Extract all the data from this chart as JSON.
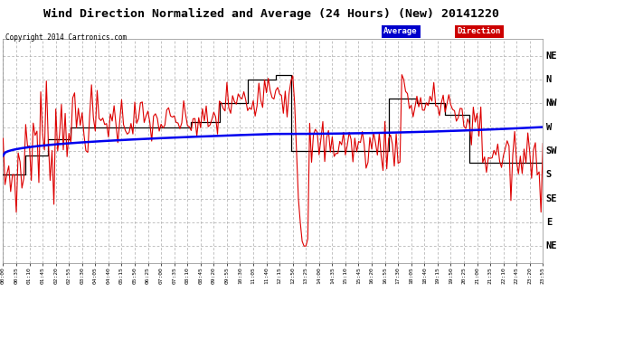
{
  "title": "Wind Direction Normalized and Average (24 Hours) (New) 20141220",
  "copyright": "Copyright 2014 Cartronics.com",
  "background_color": "#ffffff",
  "plot_bg_color": "#ffffff",
  "grid_color": "#aaaaaa",
  "y_labels": [
    "NE",
    "N",
    "NW",
    "W",
    "SW",
    "S",
    "SE",
    "E",
    "NE"
  ],
  "y_values": [
    9,
    8,
    7,
    6,
    5,
    4,
    3,
    2,
    1
  ],
  "xlim_min": 0,
  "xlim_max": 287,
  "ylim_min": 0.3,
  "ylim_max": 9.7,
  "blue_line_color": "#0000ee",
  "red_line_color": "#dd0000",
  "black_line_color": "#000000",
  "legend_avg_bg": "#0000cc",
  "legend_dir_bg": "#cc0000",
  "tick_label_step": 7
}
